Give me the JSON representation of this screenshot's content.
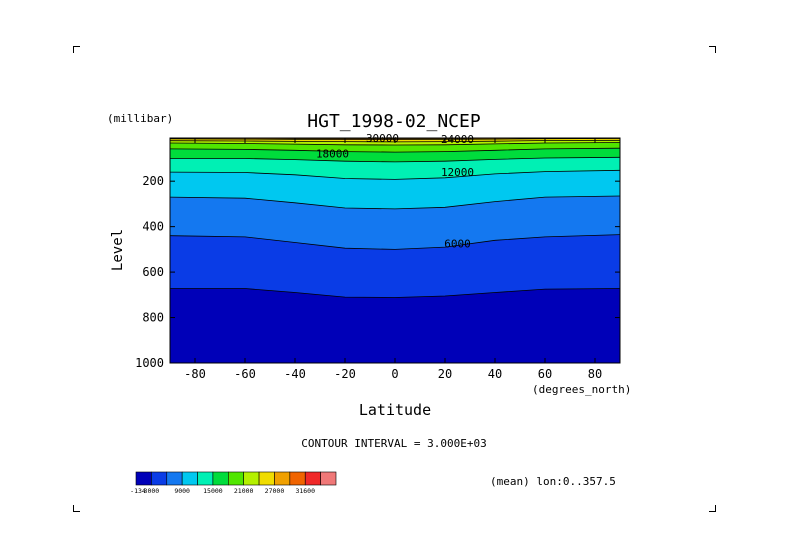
{
  "chart_data": {
    "type": "heatmap",
    "subtype": "filled-contour",
    "title": "HGT_1998-02_NCEP",
    "xlabel": "Latitude",
    "ylabel": "Level",
    "x_unit": "(degrees_north)",
    "y_unit": "(millibar)",
    "xlim": [
      -90,
      90
    ],
    "ylim": [
      1000,
      10
    ],
    "y_reversed": true,
    "x_ticks": [
      -80,
      -60,
      -40,
      -20,
      0,
      20,
      40,
      60,
      80
    ],
    "y_ticks": [
      200,
      400,
      600,
      800,
      1000
    ],
    "contour_interval_text": "CONTOUR INTERVAL = 3.000E+03",
    "mean_text": "(mean) lon:0..357.5",
    "contour_labels": [
      {
        "text": "30000",
        "x": -5,
        "level": 10
      },
      {
        "text": "24000",
        "x": 25,
        "level": 14
      },
      {
        "text": "18000",
        "x": -25,
        "level": 78
      },
      {
        "text": "12000",
        "x": 25,
        "level": 160
      },
      {
        "text": "6000",
        "x": 25,
        "level": 475
      }
    ],
    "contours": [
      {
        "value": 3000,
        "x": [
          -90,
          -60,
          -40,
          -20,
          0,
          20,
          40,
          60,
          90
        ],
        "level": [
          672,
          672,
          690,
          710,
          712,
          705,
          690,
          675,
          672
        ]
      },
      {
        "value": 6000,
        "x": [
          -90,
          -60,
          -40,
          -20,
          0,
          20,
          40,
          60,
          90
        ],
        "level": [
          440,
          445,
          470,
          495,
          500,
          490,
          460,
          445,
          435
        ]
      },
      {
        "value": 9000,
        "x": [
          -90,
          -60,
          -40,
          -20,
          0,
          20,
          40,
          60,
          90
        ],
        "level": [
          270,
          275,
          295,
          318,
          322,
          315,
          290,
          270,
          265
        ]
      },
      {
        "value": 12000,
        "x": [
          -90,
          -60,
          -40,
          -20,
          0,
          20,
          40,
          60,
          90
        ],
        "level": [
          160,
          162,
          172,
          188,
          192,
          185,
          168,
          158,
          152
        ]
      },
      {
        "value": 15000,
        "x": [
          -90,
          -60,
          -40,
          -20,
          0,
          20,
          40,
          60,
          90
        ],
        "level": [
          100,
          100,
          105,
          112,
          115,
          112,
          104,
          98,
          95
        ]
      },
      {
        "value": 18000,
        "x": [
          -90,
          -60,
          -40,
          -20,
          0,
          20,
          40,
          60,
          90
        ],
        "level": [
          58,
          60,
          64,
          70,
          72,
          70,
          64,
          58,
          55
        ]
      },
      {
        "value": 21000,
        "x": [
          -90,
          -60,
          -40,
          -20,
          0,
          20,
          40,
          60,
          90
        ],
        "level": [
          32,
          34,
          37,
          40,
          41,
          40,
          36,
          32,
          30
        ]
      },
      {
        "value": 24000,
        "x": [
          -90,
          -60,
          -40,
          -20,
          0,
          20,
          40,
          60,
          90
        ],
        "level": [
          22,
          23,
          25,
          26,
          27,
          26,
          24,
          21,
          20
        ]
      },
      {
        "value": 27000,
        "x": [
          -90,
          -60,
          -40,
          -20,
          0,
          20,
          40,
          60,
          90
        ],
        "level": [
          14,
          15,
          16,
          17,
          17,
          16,
          15,
          13,
          12
        ]
      },
      {
        "value": 30000,
        "x": [
          -90,
          -60,
          -40,
          -20,
          0,
          20,
          40,
          60,
          90
        ],
        "level": [
          11,
          11,
          12,
          12,
          12,
          12,
          11,
          10,
          10
        ]
      }
    ],
    "colorbar": {
      "labels": [
        "-134",
        "3000",
        "9000",
        "15000",
        "21000",
        "27000",
        "31600"
      ],
      "label_positions": [
        0,
        1,
        3,
        5,
        7,
        9,
        11
      ],
      "colors": [
        "#0000b8",
        "#0a3ce6",
        "#1478f0",
        "#00c8f0",
        "#00f0b4",
        "#00dc3c",
        "#50e600",
        "#b4f000",
        "#f0dc00",
        "#f0a000",
        "#f06400",
        "#f02828",
        "#f07878"
      ]
    }
  }
}
